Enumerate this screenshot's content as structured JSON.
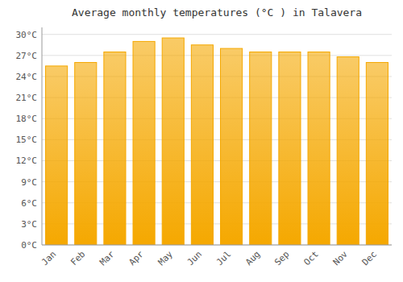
{
  "chart_data": {
    "type": "bar",
    "title": "Average monthly temperatures (°C ) in Talavera",
    "categories": [
      "Jan",
      "Feb",
      "Mar",
      "Apr",
      "May",
      "Jun",
      "Jul",
      "Aug",
      "Sep",
      "Oct",
      "Nov",
      "Dec"
    ],
    "values": [
      25.5,
      26.0,
      27.5,
      29.0,
      29.5,
      28.5,
      28.0,
      27.5,
      27.5,
      27.5,
      26.8,
      26.0
    ],
    "color": "#F5A800",
    "ylim": [
      0,
      31
    ],
    "yticks": [
      {
        "value": 0,
        "label": "0°C"
      },
      {
        "value": 3,
        "label": "3°C"
      },
      {
        "value": 6,
        "label": "6°C"
      },
      {
        "value": 9,
        "label": "9°C"
      },
      {
        "value": 12,
        "label": "12°C"
      },
      {
        "value": 15,
        "label": "15°C"
      },
      {
        "value": 18,
        "label": "18°C"
      },
      {
        "value": 21,
        "label": "21°C"
      },
      {
        "value": 24,
        "label": "24°C"
      },
      {
        "value": 27,
        "label": "27°C"
      },
      {
        "value": 30,
        "label": "30°C"
      }
    ],
    "grid": true
  }
}
